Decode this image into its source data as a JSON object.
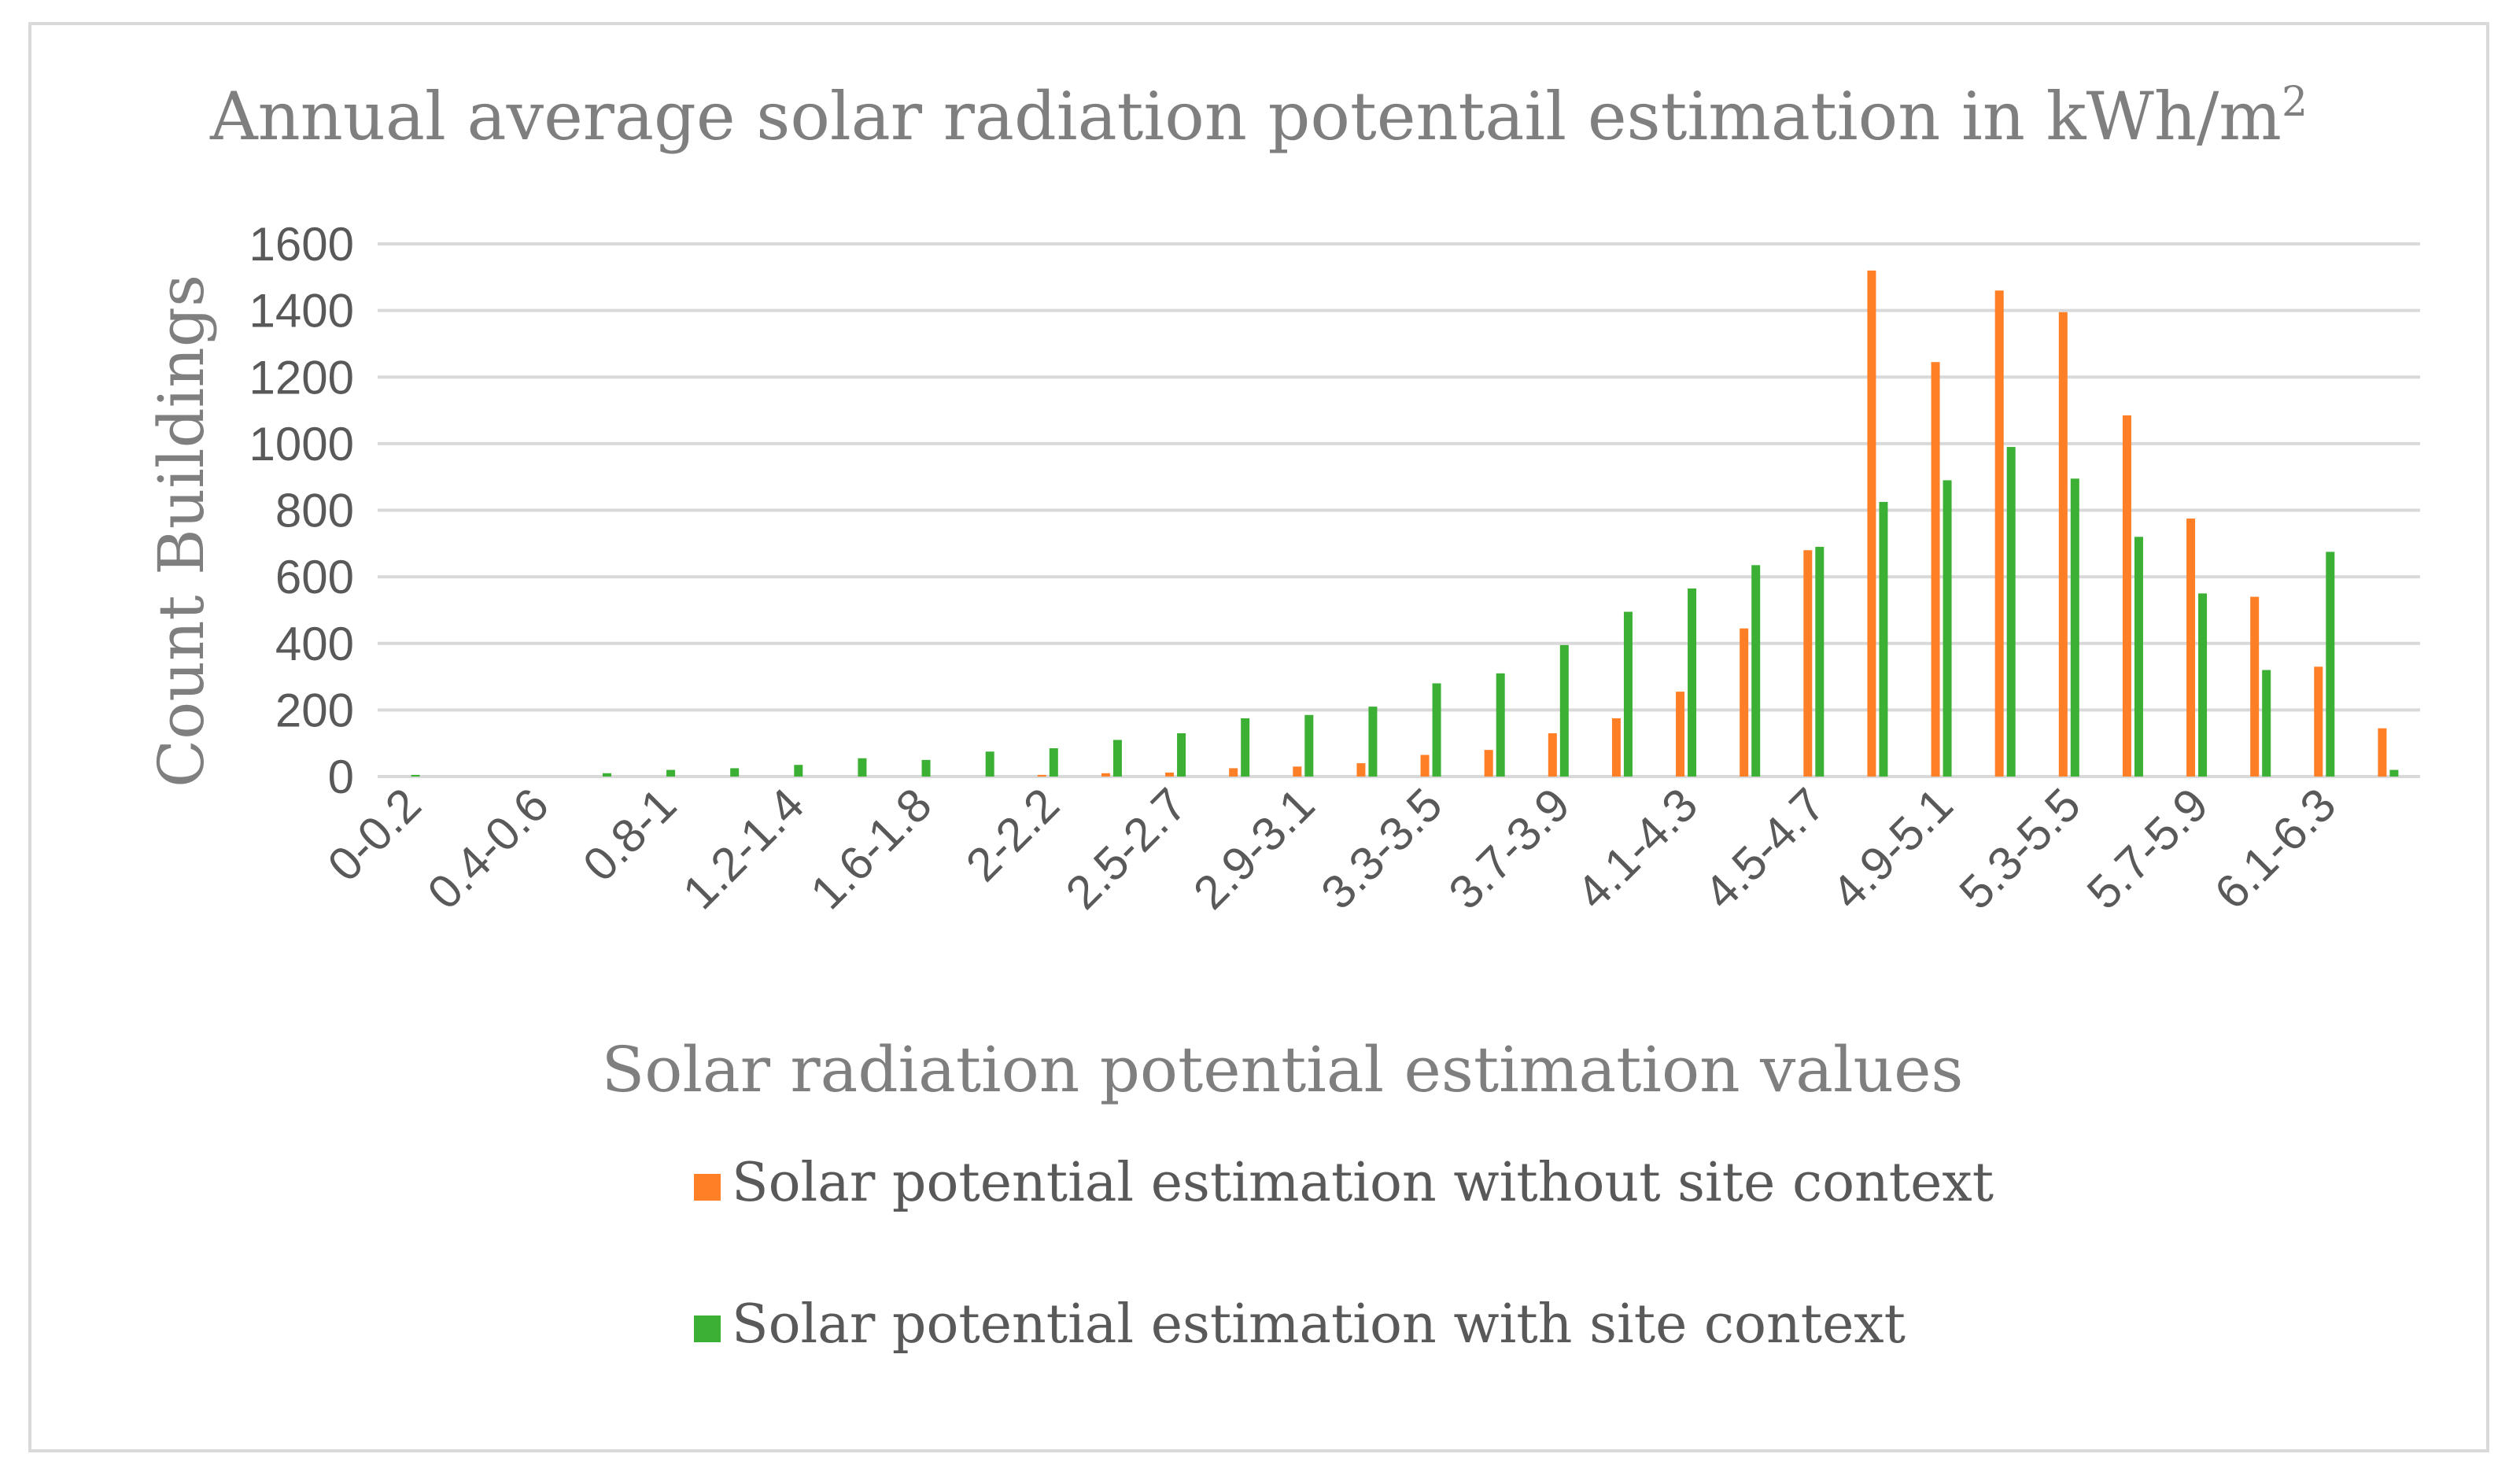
{
  "chart_data": {
    "type": "bar",
    "title": "Annual average solar radiation potentail estimation in kWh/m",
    "title_superscript": "2",
    "xlabel": "Solar radiation potential estimation values",
    "ylabel": "Count Buildings",
    "ylim": [
      0,
      1600
    ],
    "yticks": [
      0,
      200,
      400,
      600,
      800,
      1000,
      1200,
      1400,
      1600
    ],
    "gridlines": true,
    "legend_position": "bottom",
    "categories": [
      "0-0.2",
      "0.2-0.4",
      "0.4-0.6",
      "0.6-0.8",
      "0.8-1",
      "1-1.2",
      "1.2-1.4",
      "1.4-1.6",
      "1.6-1.8",
      "1.8-2",
      "2-2.2",
      "2.2-2.5",
      "2.5-2.7",
      "2.7-2.9",
      "2.9-3.1",
      "3.1-3.3",
      "3.3-3.5",
      "3.5-3.7",
      "3.7-3.9",
      "3.9-4.1",
      "4.1-4.3",
      "4.3-4.5",
      "4.5-4.7",
      "4.7-4.9",
      "4.9-5.1",
      "5.1-5.3",
      "5.3-5.5",
      "5.5-5.7",
      "5.7-5.9",
      "5.9-6.1",
      "6.1-6.3",
      "6.3-6.5"
    ],
    "visible_tick_labels": [
      "0-0.2",
      "0.4-0.6",
      "0.8-1",
      "1.2-1.4",
      "1.6-1.8",
      "2-2.2",
      "2.5-2.7",
      "2.9-3.1",
      "3.3-3.5",
      "3.7-3.9",
      "4.1-4.3",
      "4.5-4.7",
      "4.9-5.1",
      "5.3-5.5",
      "5.7-5.9",
      "6.1-6.3"
    ],
    "series": [
      {
        "name": "Solar potential estimation without site context",
        "color": "#ff7f27",
        "values": [
          0,
          0,
          0,
          0,
          0,
          0,
          0,
          0,
          0,
          0,
          5,
          10,
          12,
          25,
          30,
          40,
          65,
          80,
          130,
          175,
          255,
          445,
          680,
          1520,
          1245,
          1460,
          1395,
          1085,
          775,
          540,
          330,
          145
        ]
      },
      {
        "name": "Solar potential estimation with site context",
        "color": "#3cb034",
        "values": [
          5,
          0,
          0,
          10,
          20,
          25,
          35,
          55,
          50,
          75,
          85,
          110,
          130,
          175,
          185,
          210,
          280,
          310,
          395,
          495,
          565,
          635,
          690,
          825,
          890,
          990,
          895,
          720,
          550,
          320,
          675,
          20
        ]
      }
    ]
  }
}
